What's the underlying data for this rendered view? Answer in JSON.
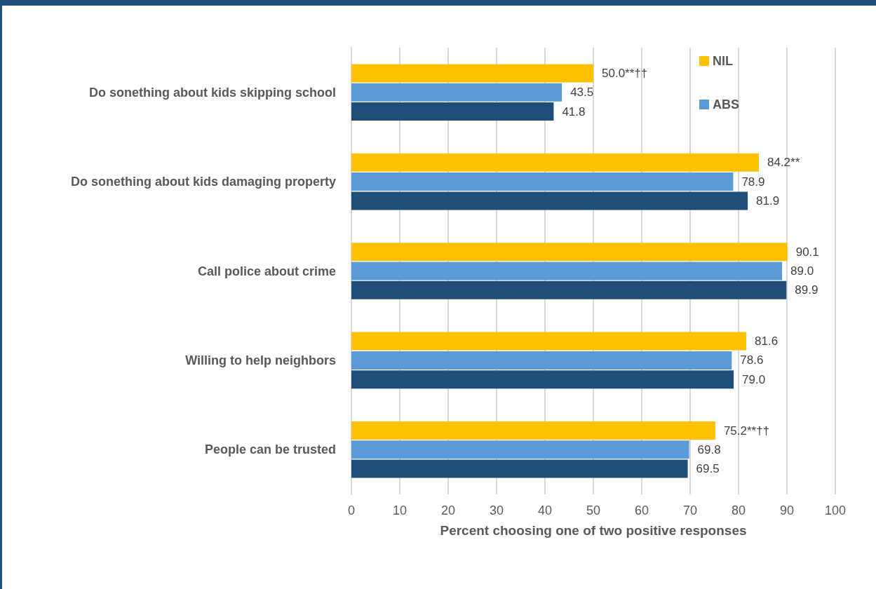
{
  "chart_data": {
    "type": "bar",
    "orientation": "horizontal",
    "xlabel": "Percent choosing one of two positive responses",
    "categories": [
      "Do sonething about kids skipping school",
      "Do sonething about kids damaging property",
      "Call police about crime",
      "Willing to help neighbors",
      "People can be trusted"
    ],
    "series": [
      {
        "name": "NIL",
        "color": "#ffc000",
        "values": [
          50.0,
          84.2,
          90.1,
          81.6,
          75.2
        ],
        "value_labels": [
          "50.0**††",
          "84.2**",
          "90.1",
          "81.6",
          "75.2**††"
        ]
      },
      {
        "name": "ABS",
        "color": "#5b9bd5",
        "values": [
          43.5,
          78.9,
          89.0,
          78.6,
          69.8
        ],
        "value_labels": [
          "43.5",
          "78.9",
          "89.0",
          "78.6",
          "69.8"
        ]
      },
      {
        "color": "#1f4e79",
        "values": [
          41.8,
          81.9,
          89.9,
          79.0,
          69.5
        ],
        "value_labels": [
          "41.8",
          "81.9",
          "89.9",
          "79.0",
          "69.5"
        ]
      }
    ],
    "xlim": [
      0,
      100
    ],
    "xticks": [
      0,
      10,
      20,
      30,
      40,
      50,
      60,
      70,
      80,
      90,
      100
    ],
    "grid": "x",
    "legend": "top right"
  }
}
